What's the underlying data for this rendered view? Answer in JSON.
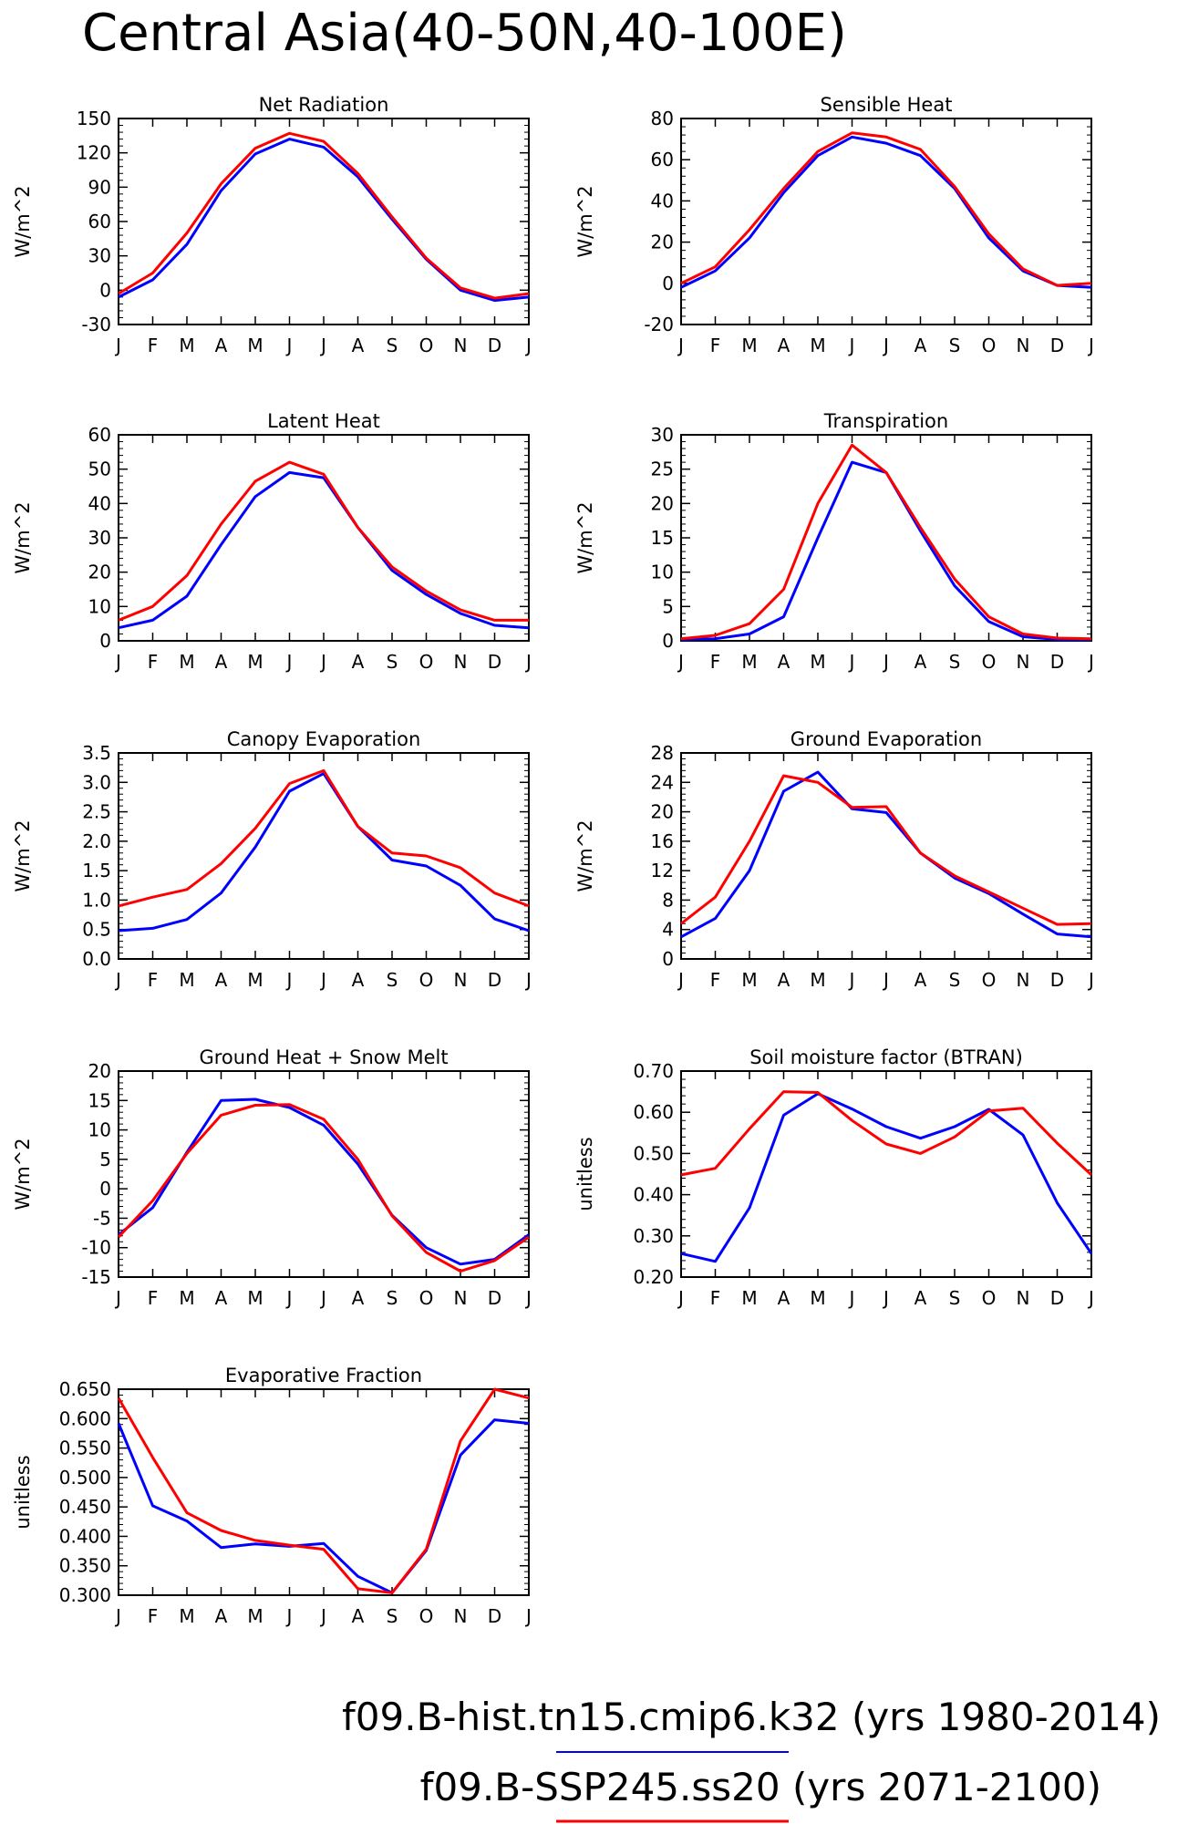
{
  "figure": {
    "title": "Central Asia(40-50N,40-100E)"
  },
  "legend": [
    {
      "label": "f09.B-hist.tn15.cmip6.k32 (yrs 1980-2014)",
      "color": "#0000ff"
    },
    {
      "label": "f09.B-SSP245.ss20 (yrs 2071-2100)",
      "color": "#ff0000"
    }
  ],
  "chart_data": [
    {
      "type": "line",
      "title": "Net Radiation",
      "ylabel": "W/m^2",
      "categories": [
        "J",
        "F",
        "M",
        "A",
        "M",
        "J",
        "J",
        "A",
        "S",
        "O",
        "N",
        "D",
        "J"
      ],
      "ylim": [
        -30,
        150
      ],
      "yticks": [
        -30,
        0,
        30,
        60,
        90,
        120,
        150
      ],
      "ytick_labels": [
        "-30",
        "0",
        "30",
        "60",
        "90",
        "120",
        "150"
      ],
      "series": [
        {
          "color": "#0000ff",
          "values": [
            -6,
            9,
            40,
            87,
            119,
            132,
            125,
            99,
            62,
            27,
            0,
            -9,
            -6
          ]
        },
        {
          "color": "#ff0000",
          "values": [
            -3,
            15,
            50,
            93,
            124,
            137,
            130,
            102,
            64,
            28,
            2,
            -7,
            -3
          ]
        }
      ]
    },
    {
      "type": "line",
      "title": "Sensible Heat",
      "ylabel": "W/m^2",
      "categories": [
        "J",
        "F",
        "M",
        "A",
        "M",
        "J",
        "J",
        "A",
        "S",
        "O",
        "N",
        "D",
        "J"
      ],
      "ylim": [
        -20,
        80
      ],
      "yticks": [
        -20,
        0,
        20,
        40,
        60,
        80
      ],
      "ytick_labels": [
        "-20",
        "0",
        "20",
        "40",
        "60",
        "80"
      ],
      "series": [
        {
          "color": "#0000ff",
          "values": [
            -2,
            6,
            22,
            44,
            62,
            71,
            68,
            62,
            46,
            22,
            6,
            -1,
            -2
          ]
        },
        {
          "color": "#ff0000",
          "values": [
            0,
            8,
            26,
            46,
            64,
            73,
            71,
            65,
            47,
            24,
            7,
            -1,
            0
          ]
        }
      ]
    },
    {
      "type": "line",
      "title": "Latent Heat",
      "ylabel": "W/m^2",
      "categories": [
        "J",
        "F",
        "M",
        "A",
        "M",
        "J",
        "J",
        "A",
        "S",
        "O",
        "N",
        "D",
        "J"
      ],
      "ylim": [
        0,
        60
      ],
      "yticks": [
        0,
        10,
        20,
        30,
        40,
        50,
        60
      ],
      "ytick_labels": [
        "0",
        "10",
        "20",
        "30",
        "40",
        "50",
        "60"
      ],
      "series": [
        {
          "color": "#0000ff",
          "values": [
            3.8,
            6,
            13,
            28,
            42,
            49,
            47.5,
            33,
            20.5,
            13.5,
            8,
            4.5,
            3.8
          ]
        },
        {
          "color": "#ff0000",
          "values": [
            6,
            10,
            19,
            34,
            46.5,
            52,
            48.5,
            33,
            21.5,
            14.5,
            9,
            6,
            6
          ]
        }
      ]
    },
    {
      "type": "line",
      "title": "Transpiration",
      "ylabel": "W/m^2",
      "categories": [
        "J",
        "F",
        "M",
        "A",
        "M",
        "J",
        "J",
        "A",
        "S",
        "O",
        "N",
        "D",
        "J"
      ],
      "ylim": [
        0,
        30
      ],
      "yticks": [
        0,
        5,
        10,
        15,
        20,
        25,
        30
      ],
      "ytick_labels": [
        "0",
        "5",
        "10",
        "15",
        "20",
        "25",
        "30"
      ],
      "series": [
        {
          "color": "#0000ff",
          "values": [
            0.2,
            0.3,
            1,
            3.5,
            15,
            26,
            24.5,
            16,
            8,
            2.8,
            0.6,
            0.2,
            0.2
          ]
        },
        {
          "color": "#ff0000",
          "values": [
            0.3,
            0.8,
            2.5,
            7.5,
            20,
            28.5,
            24.5,
            16.5,
            9,
            3.5,
            1,
            0.4,
            0.3
          ]
        }
      ]
    },
    {
      "type": "line",
      "title": "Canopy Evaporation",
      "ylabel": "W/m^2",
      "categories": [
        "J",
        "F",
        "M",
        "A",
        "M",
        "J",
        "J",
        "A",
        "S",
        "O",
        "N",
        "D",
        "J"
      ],
      "ylim": [
        0,
        3.5
      ],
      "yticks": [
        0,
        0.5,
        1.0,
        1.5,
        2.0,
        2.5,
        3.0,
        3.5
      ],
      "ytick_labels": [
        "0.0",
        "0.5",
        "1.0",
        "1.5",
        "2.0",
        "2.5",
        "3.0",
        "3.5"
      ],
      "series": [
        {
          "color": "#0000ff",
          "values": [
            0.48,
            0.52,
            0.67,
            1.12,
            1.9,
            2.85,
            3.15,
            2.25,
            1.68,
            1.58,
            1.25,
            0.68,
            0.48
          ]
        },
        {
          "color": "#ff0000",
          "values": [
            0.9,
            1.05,
            1.18,
            1.62,
            2.22,
            2.98,
            3.2,
            2.25,
            1.8,
            1.75,
            1.55,
            1.12,
            0.9
          ]
        }
      ]
    },
    {
      "type": "line",
      "title": "Ground Evaporation",
      "ylabel": "W/m^2",
      "categories": [
        "J",
        "F",
        "M",
        "A",
        "M",
        "J",
        "J",
        "A",
        "S",
        "O",
        "N",
        "D",
        "J"
      ],
      "ylim": [
        0,
        28
      ],
      "yticks": [
        0,
        4,
        8,
        12,
        16,
        20,
        24,
        28
      ],
      "ytick_labels": [
        "0",
        "4",
        "8",
        "12",
        "16",
        "20",
        "24",
        "28"
      ],
      "series": [
        {
          "color": "#0000ff",
          "values": [
            3,
            5.5,
            12,
            22.8,
            25.4,
            20.4,
            19.9,
            14.4,
            11,
            8.9,
            6.1,
            3.4,
            3
          ]
        },
        {
          "color": "#ff0000",
          "values": [
            4.8,
            8.4,
            16,
            24.9,
            24,
            20.6,
            20.7,
            14.4,
            11.3,
            9.1,
            6.9,
            4.7,
            4.8
          ]
        }
      ]
    },
    {
      "type": "line",
      "title": "Ground Heat + Snow Melt",
      "ylabel": "W/m^2",
      "categories": [
        "J",
        "F",
        "M",
        "A",
        "M",
        "J",
        "J",
        "A",
        "S",
        "O",
        "N",
        "D",
        "J"
      ],
      "ylim": [
        -15,
        20
      ],
      "yticks": [
        -15,
        -10,
        -5,
        0,
        5,
        10,
        15,
        20
      ],
      "ytick_labels": [
        "-15",
        "-10",
        "-5",
        "0",
        "5",
        "10",
        "15",
        "20"
      ],
      "series": [
        {
          "color": "#0000ff",
          "values": [
            -7.8,
            -3.2,
            6.2,
            15,
            15.2,
            13.8,
            10.8,
            4.2,
            -4.5,
            -10,
            -12.8,
            -12,
            -7.8
          ]
        },
        {
          "color": "#ff0000",
          "values": [
            -8.2,
            -2,
            6,
            12.5,
            14.2,
            14.3,
            11.8,
            5,
            -4.6,
            -10.8,
            -14,
            -12.2,
            -8.2
          ]
        }
      ]
    },
    {
      "type": "line",
      "title": "Soil moisture factor (BTRAN)",
      "ylabel": "unitless",
      "categories": [
        "J",
        "F",
        "M",
        "A",
        "M",
        "J",
        "J",
        "A",
        "S",
        "O",
        "N",
        "D",
        "J"
      ],
      "ylim": [
        0.2,
        0.7
      ],
      "yticks": [
        0.2,
        0.3,
        0.4,
        0.5,
        0.6,
        0.7
      ],
      "ytick_labels": [
        "0.20",
        "0.30",
        "0.40",
        "0.50",
        "0.60",
        "0.70"
      ],
      "series": [
        {
          "color": "#0000ff",
          "values": [
            0.257,
            0.238,
            0.368,
            0.593,
            0.645,
            0.608,
            0.565,
            0.537,
            0.565,
            0.607,
            0.545,
            0.38,
            0.257
          ]
        },
        {
          "color": "#ff0000",
          "values": [
            0.448,
            0.464,
            0.56,
            0.65,
            0.648,
            0.58,
            0.523,
            0.5,
            0.54,
            0.603,
            0.61,
            0.525,
            0.448
          ]
        }
      ]
    },
    {
      "type": "line",
      "title": "Evaporative Fraction",
      "ylabel": "unitless",
      "categories": [
        "J",
        "F",
        "M",
        "A",
        "M",
        "J",
        "J",
        "A",
        "S",
        "O",
        "N",
        "D",
        "J"
      ],
      "ylim": [
        0.3,
        0.65
      ],
      "yticks": [
        0.3,
        0.35,
        0.4,
        0.45,
        0.5,
        0.55,
        0.6,
        0.65
      ],
      "ytick_labels": [
        "0.300",
        "0.350",
        "0.400",
        "0.450",
        "0.500",
        "0.550",
        "0.600",
        "0.650"
      ],
      "series": [
        {
          "color": "#0000ff",
          "values": [
            0.592,
            0.452,
            0.426,
            0.381,
            0.387,
            0.383,
            0.388,
            0.332,
            0.304,
            0.376,
            0.538,
            0.598,
            0.592
          ]
        },
        {
          "color": "#ff0000",
          "values": [
            0.635,
            0.534,
            0.44,
            0.41,
            0.393,
            0.385,
            0.378,
            0.311,
            0.304,
            0.378,
            0.562,
            0.65,
            0.635
          ]
        }
      ]
    }
  ]
}
